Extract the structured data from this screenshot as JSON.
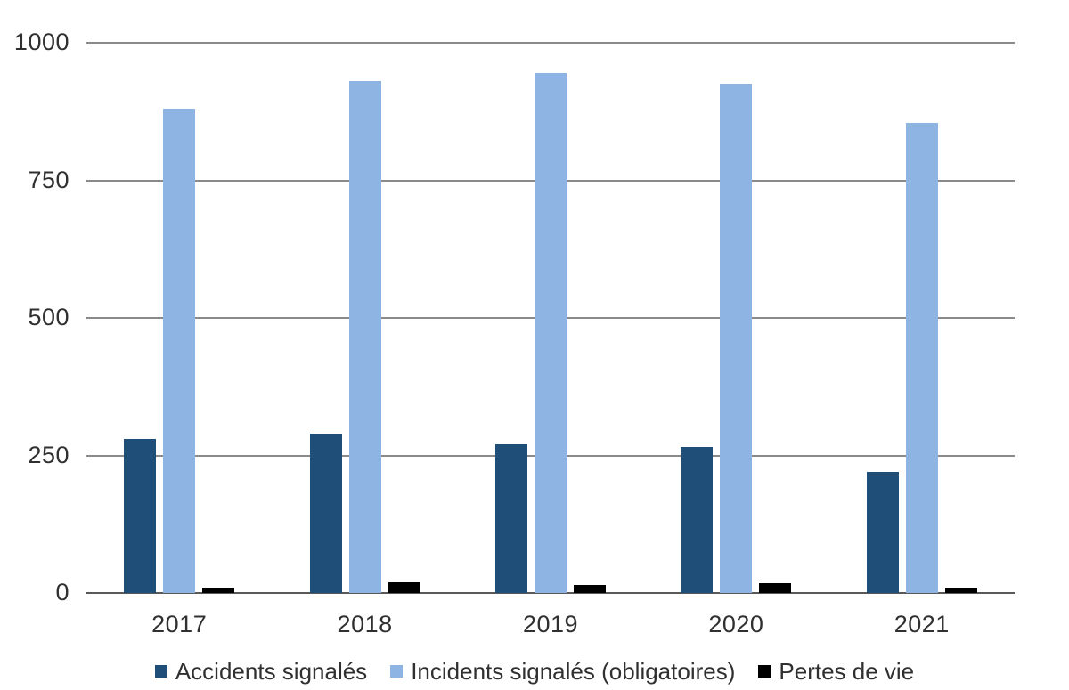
{
  "chart_data": {
    "type": "bar",
    "categories": [
      "2017",
      "2018",
      "2019",
      "2020",
      "2021"
    ],
    "series": [
      {
        "key": "accidents",
        "name": "Accidents signalés",
        "color": "#1F4E79",
        "values": [
          280,
          290,
          270,
          265,
          220
        ]
      },
      {
        "key": "incidents",
        "name": "Incidents signalés (obligatoires)",
        "color": "#8EB4E3",
        "values": [
          880,
          930,
          945,
          925,
          855
        ]
      },
      {
        "key": "pertes-de-vie",
        "name": "Pertes de vie",
        "color": "#000000",
        "values": [
          10,
          20,
          15,
          18,
          9
        ]
      }
    ],
    "title": "",
    "xlabel": "",
    "ylabel": "",
    "ylim": [
      0,
      1000
    ],
    "yticks": [
      0,
      250,
      500,
      750,
      1000
    ],
    "grid": true,
    "legend_position": "bottom"
  },
  "colors": {
    "gridline": "#8A8A8A",
    "axis": "#595959",
    "text": "#303030",
    "background": "#FFFFFF"
  }
}
